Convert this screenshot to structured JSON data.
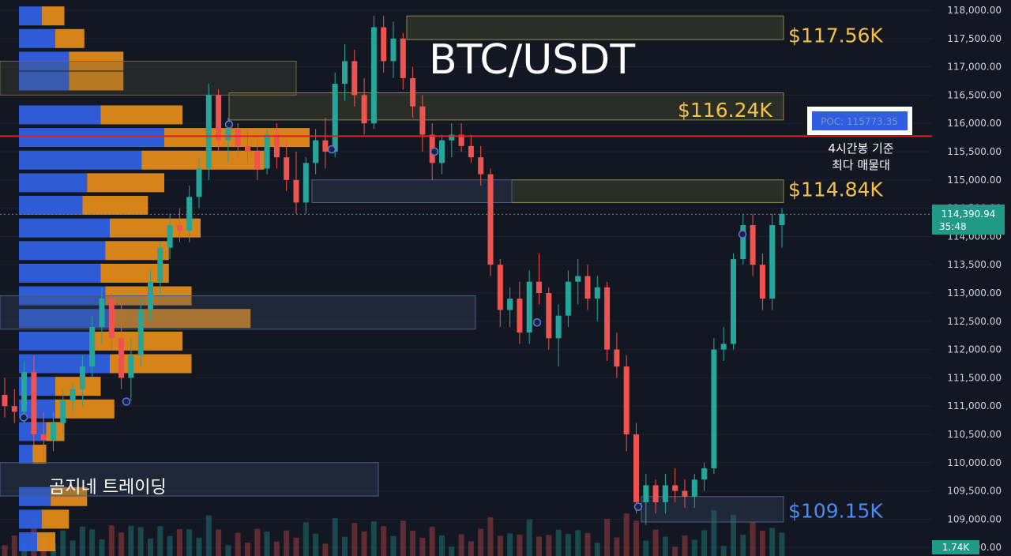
{
  "chart_data": {
    "type": "candlestick",
    "title": "BTC/USDT",
    "watermark": "곰지네 트레이딩",
    "y_ticks": [
      "118,000.00",
      "117,500.00",
      "117,000.00",
      "116,500.00",
      "116,000.00",
      "115,500.00",
      "115,000.00",
      "114,500.00",
      "114,000.00",
      "113,500.00",
      "113,000.00",
      "112,500.00",
      "112,000.00",
      "111,500.00",
      "111,000.00",
      "110,500.00",
      "110,000.00",
      "109,500.00",
      "109,000.00",
      "108,500.00"
    ],
    "ylim": [
      108500,
      118000
    ],
    "last_price": "114,390.94",
    "countdown": "35:48",
    "volume_badge": "1.74K",
    "poc": {
      "label": "POC: 115773.35",
      "value": 115773.35,
      "note_line1": "4시간봉 기준",
      "note_line2": "최다 매물대"
    },
    "levels": [
      {
        "label": "$117.56K",
        "value": 117560,
        "color": "#f5c244"
      },
      {
        "label": "$116.24K",
        "value": 116240,
        "color": "#f5c244"
      },
      {
        "label": "$114.84K",
        "value": 114840,
        "color": "#f5c244"
      },
      {
        "label": "$109.15K",
        "value": 109150,
        "color": "#4a8bf5"
      }
    ],
    "colors": {
      "up": "#26a69a",
      "down": "#ef5350",
      "poc_line": "#e0201e",
      "vp_blue": "#2f5fe0",
      "vp_orange": "#e08a1a",
      "background": "#131722"
    },
    "candles": [
      [
        111200,
        111500,
        110800,
        111000
      ],
      [
        111000,
        111300,
        110700,
        110900
      ],
      [
        110900,
        111800,
        110700,
        111600
      ],
      [
        111600,
        111900,
        110300,
        110500
      ],
      [
        110500,
        110900,
        110000,
        110400
      ],
      [
        110400,
        110900,
        110200,
        110700
      ],
      [
        110700,
        111300,
        110500,
        111100
      ],
      [
        111100,
        111400,
        110900,
        111300
      ],
      [
        111300,
        111900,
        111000,
        111700
      ],
      [
        111700,
        112600,
        111500,
        112400
      ],
      [
        112400,
        113100,
        112100,
        112900
      ],
      [
        112900,
        113000,
        112000,
        112200
      ],
      [
        112200,
        112800,
        111300,
        111500
      ],
      [
        111500,
        112200,
        111100,
        111900
      ],
      [
        111900,
        112900,
        111700,
        112700
      ],
      [
        112700,
        113400,
        112500,
        113200
      ],
      [
        113200,
        113900,
        113000,
        113800
      ],
      [
        113800,
        114400,
        113600,
        114200
      ],
      [
        114200,
        114500,
        113900,
        114100
      ],
      [
        114100,
        114900,
        113900,
        114700
      ],
      [
        114700,
        115400,
        114500,
        115200
      ],
      [
        115200,
        116700,
        115000,
        116500
      ],
      [
        116500,
        116600,
        115500,
        115700
      ],
      [
        115700,
        116100,
        115300,
        115900
      ],
      [
        115900,
        116000,
        115400,
        115600
      ],
      [
        115600,
        115900,
        115300,
        115500
      ],
      [
        115500,
        115700,
        115000,
        115200
      ],
      [
        115200,
        115900,
        115100,
        115800
      ],
      [
        115800,
        116000,
        115200,
        115400
      ],
      [
        115400,
        115700,
        114800,
        115000
      ],
      [
        115000,
        115500,
        114400,
        114600
      ],
      [
        114600,
        115400,
        114400,
        115300
      ],
      [
        115300,
        115900,
        115100,
        115700
      ],
      [
        115700,
        116100,
        115200,
        115500
      ],
      [
        115500,
        116900,
        115400,
        116700
      ],
      [
        116700,
        117400,
        116400,
        117100
      ],
      [
        117100,
        117300,
        116300,
        116500
      ],
      [
        116500,
        116800,
        115800,
        116000
      ],
      [
        116000,
        117900,
        115900,
        117700
      ],
      [
        117700,
        117900,
        116900,
        117100
      ],
      [
        117100,
        117800,
        116800,
        117500
      ],
      [
        117500,
        117600,
        116600,
        116800
      ],
      [
        116800,
        117000,
        116100,
        116300
      ],
      [
        116300,
        116500,
        115500,
        115800
      ],
      [
        115800,
        116000,
        115000,
        115300
      ],
      [
        115300,
        115800,
        115100,
        115700
      ],
      [
        115700,
        116000,
        115400,
        115800
      ],
      [
        115800,
        116000,
        115500,
        115600
      ],
      [
        115600,
        115800,
        115300,
        115400
      ],
      [
        115400,
        115600,
        114900,
        115100
      ],
      [
        115100,
        115200,
        113300,
        113500
      ],
      [
        113500,
        113600,
        112400,
        112700
      ],
      [
        112700,
        113100,
        112400,
        112900
      ],
      [
        112900,
        113200,
        112100,
        112300
      ],
      [
        112300,
        113400,
        112100,
        113200
      ],
      [
        113200,
        113700,
        112800,
        113000
      ],
      [
        113000,
        113100,
        112000,
        112200
      ],
      [
        112200,
        112800,
        111700,
        112600
      ],
      [
        112600,
        113400,
        112400,
        113200
      ],
      [
        113200,
        113600,
        112800,
        113300
      ],
      [
        113300,
        113500,
        112700,
        112900
      ],
      [
        112900,
        113300,
        112500,
        113100
      ],
      [
        113100,
        113200,
        111800,
        112000
      ],
      [
        112000,
        112300,
        111500,
        111700
      ],
      [
        111700,
        111900,
        110200,
        110500
      ],
      [
        110500,
        110700,
        109100,
        109300
      ],
      [
        109300,
        109800,
        108900,
        109600
      ],
      [
        109600,
        109700,
        109100,
        109300
      ],
      [
        109300,
        109800,
        109100,
        109600
      ],
      [
        109600,
        109900,
        109300,
        109500
      ],
      [
        109500,
        109700,
        109200,
        109400
      ],
      [
        109400,
        109800,
        109200,
        109700
      ],
      [
        109700,
        110000,
        109500,
        109900
      ],
      [
        109900,
        112200,
        109800,
        112000
      ],
      [
        112000,
        112400,
        111800,
        112100
      ],
      [
        112100,
        113700,
        112000,
        113600
      ],
      [
        113600,
        114400,
        113500,
        114200
      ],
      [
        114200,
        114400,
        113300,
        113500
      ],
      [
        113500,
        113700,
        112700,
        112900
      ],
      [
        112900,
        114400,
        112700,
        114200
      ],
      [
        114200,
        114500,
        113800,
        114400
      ]
    ],
    "volume_profile": [
      {
        "price": 117900,
        "buy": 0.25,
        "sell": 0.25
      },
      {
        "price": 117500,
        "buy": 0.4,
        "sell": 0.32
      },
      {
        "price": 117100,
        "buy": 0.55,
        "sell": 0.6
      },
      {
        "price": 116750,
        "buy": 0.55,
        "sell": 0.6
      },
      {
        "price": 116150,
        "buy": 0.9,
        "sell": 0.9
      },
      {
        "price": 115750,
        "buy": 1.6,
        "sell": 1.6
      },
      {
        "price": 115350,
        "buy": 1.35,
        "sell": 1.35
      },
      {
        "price": 114950,
        "buy": 0.75,
        "sell": 0.85
      },
      {
        "price": 114550,
        "buy": 0.7,
        "sell": 0.72
      },
      {
        "price": 114150,
        "buy": 1.0,
        "sell": 1.0
      },
      {
        "price": 113750,
        "buy": 0.95,
        "sell": 0.7
      },
      {
        "price": 113350,
        "buy": 0.9,
        "sell": 0.75
      },
      {
        "price": 112950,
        "buy": 0.95,
        "sell": 0.95
      },
      {
        "price": 112550,
        "buy": 1.0,
        "sell": 1.55
      },
      {
        "price": 112150,
        "buy": 0.8,
        "sell": 1.0
      },
      {
        "price": 111750,
        "buy": 1.0,
        "sell": 0.9
      },
      {
        "price": 111350,
        "buy": 0.4,
        "sell": 0.5
      },
      {
        "price": 110950,
        "buy": 0.4,
        "sell": 0.65
      },
      {
        "price": 110550,
        "buy": 0.3,
        "sell": 0.2
      },
      {
        "price": 110150,
        "buy": 0.15,
        "sell": 0.15
      },
      {
        "price": 109400,
        "buy": 0.35,
        "sell": 0.4
      },
      {
        "price": 109000,
        "buy": 0.25,
        "sell": 0.3
      },
      {
        "price": 108600,
        "buy": 0.2,
        "sell": 0.2
      }
    ]
  }
}
